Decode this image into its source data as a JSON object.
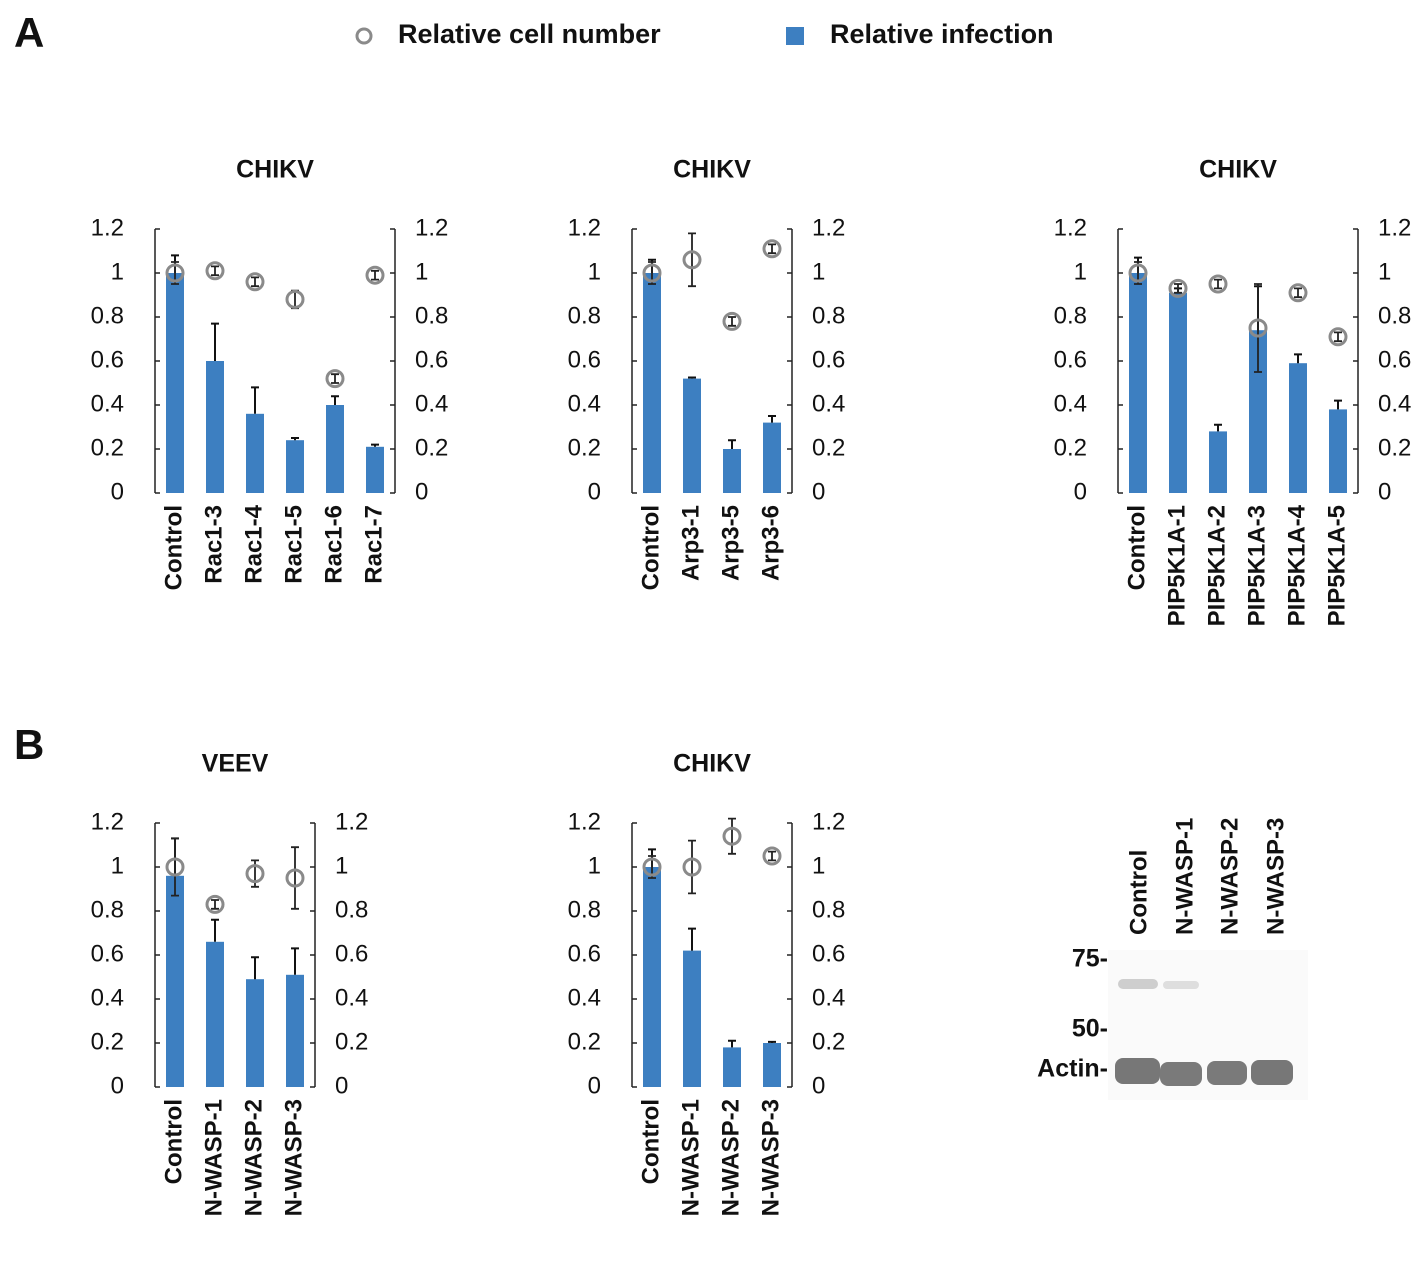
{
  "panel_labels": [
    "A",
    "B"
  ],
  "chart_data": [
    {
      "type": "bar",
      "title": "CHIKV",
      "categories": [
        "Control",
        "Rac1-3",
        "Rac1-4",
        "Rac1-5",
        "Rac1-6",
        "Rac1-7"
      ],
      "series": [
        {
          "name": "Relative infection",
          "type": "bar",
          "color": "#3d7fc1",
          "values": [
            1.0,
            0.6,
            0.36,
            0.24,
            0.4,
            0.21
          ],
          "errors": [
            0.08,
            0.17,
            0.12,
            0.01,
            0.04,
            0.01
          ]
        },
        {
          "name": "Relative cell number",
          "type": "scatter",
          "axis": "y2",
          "color": "#8a8a8a",
          "values": [
            1.0,
            1.01,
            0.96,
            0.88,
            0.52,
            0.99
          ],
          "errors": [
            0.05,
            0.02,
            0.02,
            0.04,
            0.02,
            0.02
          ]
        }
      ],
      "ylim": [
        0,
        1.2
      ],
      "yticks": [
        0,
        0.2,
        0.4,
        0.6,
        0.8,
        1,
        1.2
      ],
      "y2lim": [
        0,
        1.2
      ],
      "y2ticks": [
        0,
        0.2,
        0.4,
        0.6,
        0.8,
        1,
        1.2
      ]
    },
    {
      "type": "bar",
      "title": "CHIKV",
      "categories": [
        "Control",
        "Arp3-1",
        "Arp3-5",
        "Arp3-6"
      ],
      "series": [
        {
          "type": "bar",
          "color": "#3d7fc1",
          "values": [
            1.0,
            0.52,
            0.2,
            0.32
          ],
          "errors": [
            0.06,
            0.005,
            0.04,
            0.03
          ]
        },
        {
          "type": "scatter",
          "axis": "y2",
          "color": "#8a8a8a",
          "values": [
            1.0,
            1.06,
            0.78,
            1.11
          ],
          "errors": [
            0.05,
            0.12,
            0.02,
            0.02
          ]
        }
      ],
      "ylim": [
        0,
        1.2
      ],
      "yticks": [
        0,
        0.2,
        0.4,
        0.6,
        0.8,
        1,
        1.2
      ],
      "y2lim": [
        0,
        1.2
      ],
      "y2ticks": [
        0,
        0.2,
        0.4,
        0.6,
        0.8,
        1,
        1.2
      ]
    },
    {
      "type": "bar",
      "title": "CHIKV",
      "categories": [
        "Control",
        "PIP5K1A-1",
        "PIP5K1A-2",
        "PIP5K1A-3",
        "PIP5K1A-4",
        "PIP5K1A-5"
      ],
      "series": [
        {
          "type": "bar",
          "color": "#3d7fc1",
          "values": [
            1.0,
            0.91,
            0.28,
            0.74,
            0.59,
            0.38
          ],
          "errors": [
            0.07,
            0.02,
            0.03,
            0.2,
            0.04,
            0.04
          ]
        },
        {
          "type": "scatter",
          "axis": "y2",
          "color": "#8a8a8a",
          "values": [
            1.0,
            0.93,
            0.95,
            0.75,
            0.91,
            0.71
          ],
          "errors": [
            0.05,
            0.02,
            0.02,
            0.2,
            0.02,
            0.02
          ]
        }
      ],
      "ylim": [
        0,
        1.2
      ],
      "yticks": [
        0,
        0.2,
        0.4,
        0.6,
        0.8,
        1,
        1.2
      ],
      "y2lim": [
        0,
        1.2
      ],
      "y2ticks": [
        0,
        0.2,
        0.4,
        0.6,
        0.8,
        1,
        1.2
      ]
    },
    {
      "type": "bar",
      "title": "VEEV",
      "categories": [
        "Control",
        "N-WASP-1",
        "N-WASP-2",
        "N-WASP-3"
      ],
      "series": [
        {
          "type": "bar",
          "color": "#3d7fc1",
          "values": [
            0.96,
            0.66,
            0.49,
            0.51
          ],
          "errors": [
            0.17,
            0.1,
            0.1,
            0.12
          ]
        },
        {
          "type": "scatter",
          "axis": "y2",
          "color": "#8a8a8a",
          "values": [
            1.0,
            0.83,
            0.97,
            0.95
          ],
          "errors": [
            0.13,
            0.02,
            0.06,
            0.14
          ]
        }
      ],
      "ylim": [
        0,
        1.2
      ],
      "yticks": [
        0,
        0.2,
        0.4,
        0.6,
        0.8,
        1,
        1.2
      ],
      "y2lim": [
        0,
        1.2
      ],
      "y2ticks": [
        0,
        0.2,
        0.4,
        0.6,
        0.8,
        1,
        1.2
      ]
    },
    {
      "type": "bar",
      "title": "CHIKV",
      "categories": [
        "Control",
        "N-WASP-1",
        "N-WASP-2",
        "N-WASP-3"
      ],
      "series": [
        {
          "type": "bar",
          "color": "#3d7fc1",
          "values": [
            1.0,
            0.62,
            0.18,
            0.2
          ],
          "errors": [
            0.08,
            0.1,
            0.03,
            0.005
          ]
        },
        {
          "type": "scatter",
          "axis": "y2",
          "color": "#8a8a8a",
          "values": [
            1.0,
            1.0,
            1.14,
            1.05
          ],
          "errors": [
            0.05,
            0.12,
            0.08,
            0.02
          ]
        }
      ],
      "ylim": [
        0,
        1.2
      ],
      "yticks": [
        0,
        0.2,
        0.4,
        0.6,
        0.8,
        1,
        1.2
      ],
      "y2lim": [
        0,
        1.2
      ],
      "y2ticks": [
        0,
        0.2,
        0.4,
        0.6,
        0.8,
        1,
        1.2
      ]
    }
  ],
  "blot": {
    "lanes": [
      "Control",
      "N-WASP-1",
      "N-WASP-2",
      "N-WASP-3"
    ],
    "markers": [
      "75-",
      "50-",
      "Actin-"
    ]
  }
}
